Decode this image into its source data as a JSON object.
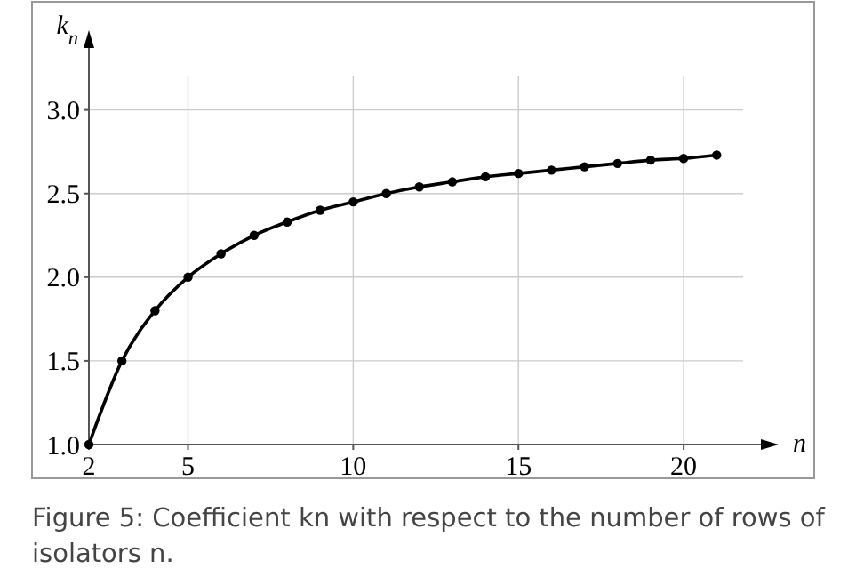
{
  "chart_data": {
    "type": "line",
    "xlabel": "n",
    "ylabel": "k$_{n}$",
    "x": [
      2,
      3,
      4,
      5,
      6,
      7,
      8,
      9,
      10,
      11,
      12,
      13,
      14,
      15,
      16,
      17,
      18,
      19,
      20,
      21
    ],
    "series": [
      {
        "color": "#000000",
        "values": [
          1.0,
          1.5,
          1.8,
          2.0,
          2.14,
          2.25,
          2.33,
          2.4,
          2.45,
          2.5,
          2.54,
          2.57,
          2.6,
          2.62,
          2.64,
          2.66,
          2.68,
          2.7,
          2.71,
          2.73
        ]
      }
    ],
    "xlim": [
      2,
      21.8
    ],
    "ylim": [
      1.0,
      3.2
    ],
    "xticks": [
      2,
      5,
      10,
      15,
      20
    ],
    "yticks": [
      {
        "value": 1.0,
        "label": "1.0"
      },
      {
        "value": 1.5,
        "label": "1.5"
      },
      {
        "value": 2.0,
        "label": "2.0"
      },
      {
        "value": 2.5,
        "label": "2.5"
      },
      {
        "value": 3.0,
        "label": "3.0"
      }
    ],
    "grid": true,
    "marker": "circle",
    "line_style": "solid",
    "annotations": [
      "Figure 5: Coefficient kn with respect to the number of rows of isolators n."
    ]
  }
}
